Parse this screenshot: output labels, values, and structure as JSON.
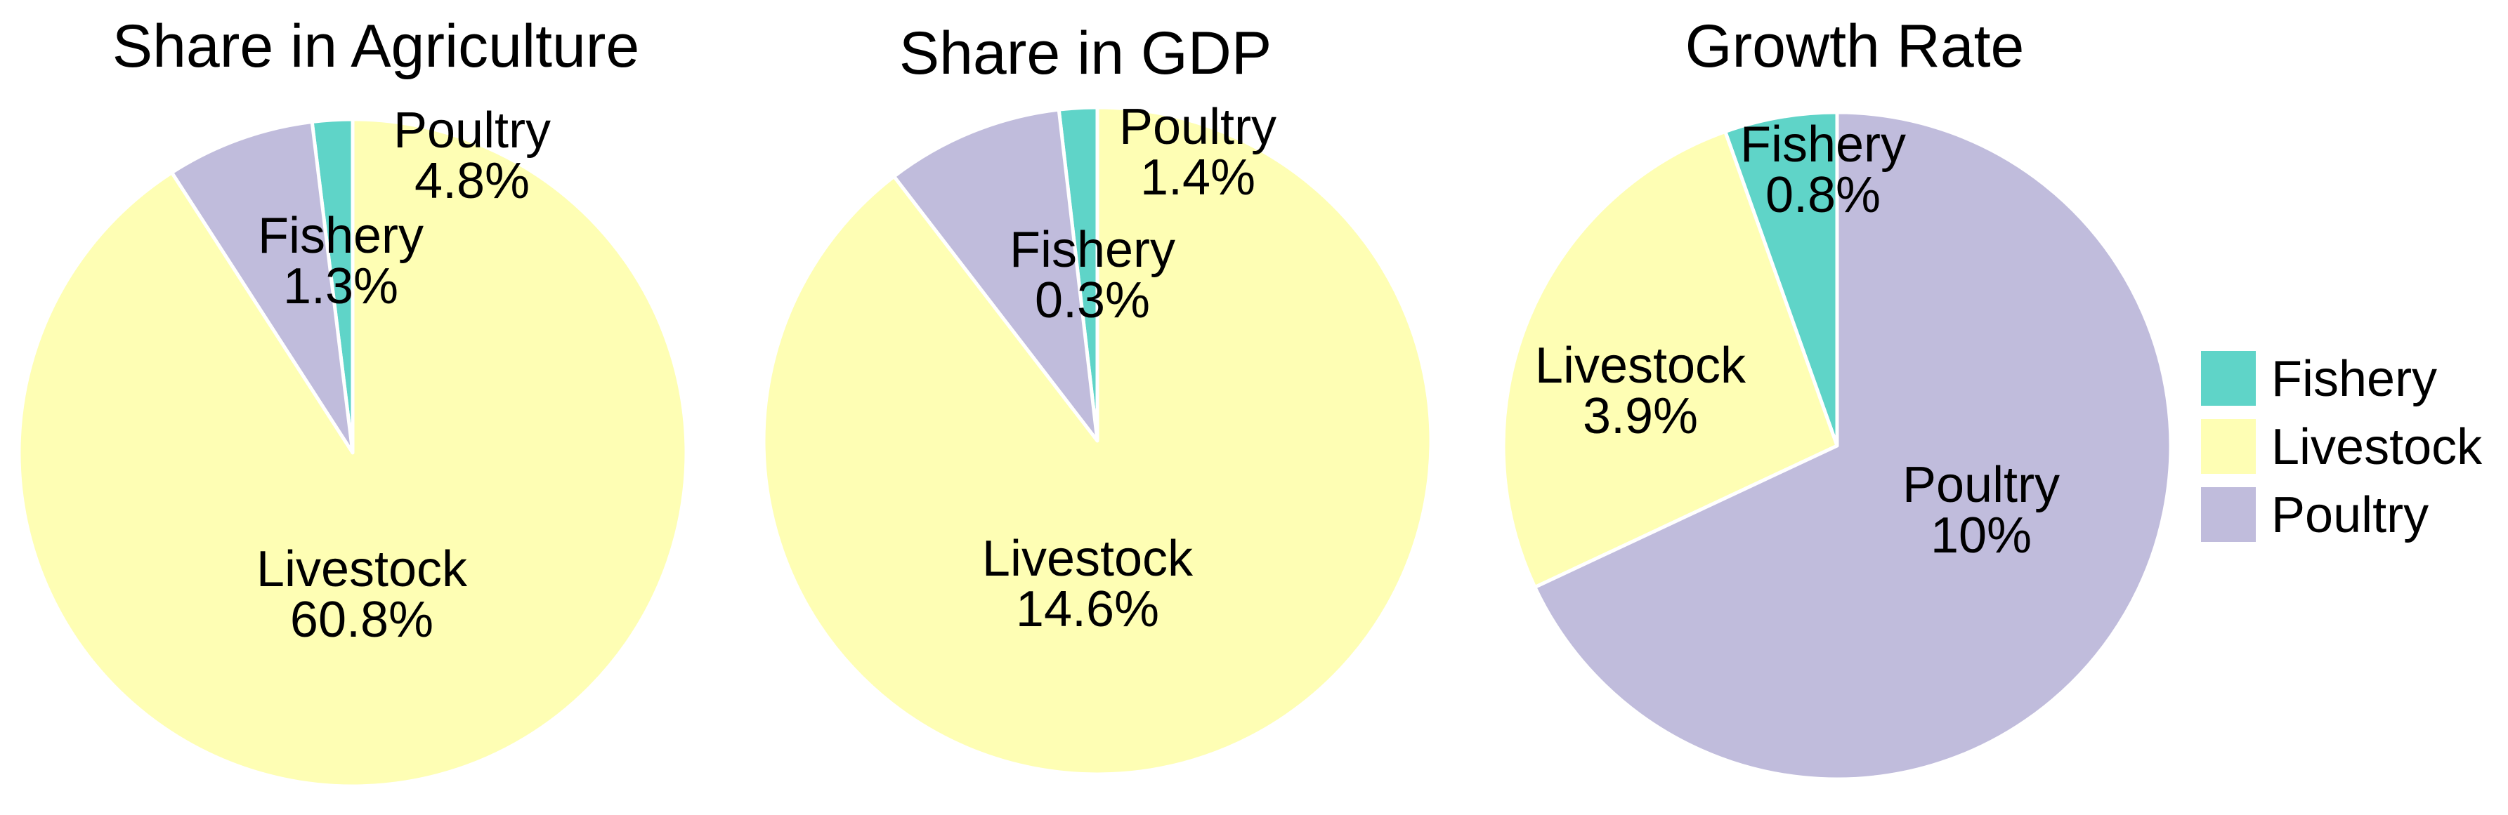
{
  "colors": {
    "Fishery": "#5fd4c8",
    "Livestock": "#fefeb4",
    "Poultry": "#c0bcdc"
  },
  "legend": {
    "items": [
      {
        "name": "Fishery",
        "color": "#5fd4c8"
      },
      {
        "name": "Livestock",
        "color": "#fefeb4"
      },
      {
        "name": "Poultry",
        "color": "#c0bcdc"
      }
    ]
  },
  "chart_data": [
    {
      "type": "pie",
      "title": "Share  in  Agriculture",
      "categories": [
        "Fishery",
        "Poultry",
        "Livestock"
      ],
      "values": [
        1.3,
        4.8,
        60.8
      ],
      "value_labels": [
        "1.3%",
        "4.8%",
        "60.8%"
      ],
      "start_angle_deg": 0,
      "direction": "counterclockwise",
      "legend": "none"
    },
    {
      "type": "pie",
      "title": "Share in GDP",
      "categories": [
        "Fishery",
        "Poultry",
        "Livestock"
      ],
      "values": [
        0.3,
        1.4,
        14.6
      ],
      "value_labels": [
        "0.3%",
        "1.4%",
        "14.6%"
      ],
      "start_angle_deg": 0,
      "direction": "counterclockwise",
      "legend": "none"
    },
    {
      "type": "pie",
      "title": "Growth Rate",
      "categories": [
        "Fishery",
        "Livestock",
        "Poultry"
      ],
      "values": [
        0.8,
        3.9,
        10
      ],
      "value_labels": [
        "0.8%",
        "3.9%",
        "10%"
      ],
      "start_angle_deg": 0,
      "direction": "counterclockwise",
      "legend": "right"
    }
  ]
}
